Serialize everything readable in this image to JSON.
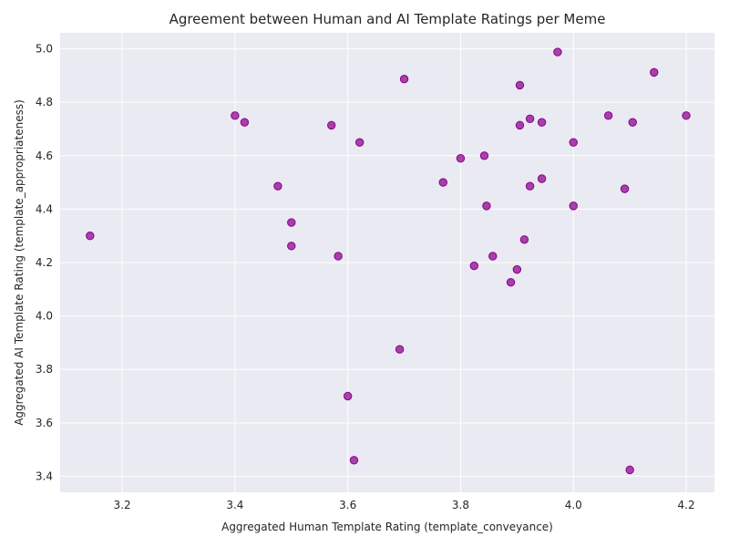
{
  "chart_data": {
    "type": "scatter",
    "title": "Agreement between Human and AI Template Ratings per Meme",
    "xlabel": "Aggregated Human Template Rating (template_conveyance)",
    "ylabel": "Aggregated AI Template Rating (template_appropriateness)",
    "xlim": [
      3.09,
      4.25
    ],
    "ylim": [
      3.34,
      5.06
    ],
    "xticks": [
      3.2,
      3.4,
      3.6,
      3.8,
      4.0,
      4.2
    ],
    "yticks": [
      3.4,
      3.6,
      3.8,
      4.0,
      4.2,
      4.4,
      4.6,
      4.8,
      5.0
    ],
    "grid": true,
    "background": "#eaeaf2",
    "point_color": "#8b008b",
    "points": [
      {
        "x": 3.143,
        "y": 4.3
      },
      {
        "x": 3.4,
        "y": 4.75
      },
      {
        "x": 3.417,
        "y": 4.725
      },
      {
        "x": 3.476,
        "y": 4.486
      },
      {
        "x": 3.5,
        "y": 4.35
      },
      {
        "x": 3.5,
        "y": 4.262
      },
      {
        "x": 3.571,
        "y": 4.714
      },
      {
        "x": 3.583,
        "y": 4.224
      },
      {
        "x": 3.6,
        "y": 3.7
      },
      {
        "x": 3.611,
        "y": 3.46
      },
      {
        "x": 3.621,
        "y": 4.65
      },
      {
        "x": 3.692,
        "y": 3.875
      },
      {
        "x": 3.7,
        "y": 4.887
      },
      {
        "x": 3.769,
        "y": 4.5
      },
      {
        "x": 3.8,
        "y": 4.59
      },
      {
        "x": 3.824,
        "y": 4.188
      },
      {
        "x": 3.842,
        "y": 4.6
      },
      {
        "x": 3.846,
        "y": 4.412
      },
      {
        "x": 3.857,
        "y": 4.224
      },
      {
        "x": 3.889,
        "y": 4.126
      },
      {
        "x": 3.9,
        "y": 4.174
      },
      {
        "x": 3.905,
        "y": 4.864
      },
      {
        "x": 3.905,
        "y": 4.714
      },
      {
        "x": 3.913,
        "y": 4.286
      },
      {
        "x": 3.923,
        "y": 4.738
      },
      {
        "x": 3.923,
        "y": 4.486
      },
      {
        "x": 3.944,
        "y": 4.725
      },
      {
        "x": 3.944,
        "y": 4.514
      },
      {
        "x": 3.972,
        "y": 4.988
      },
      {
        "x": 4.0,
        "y": 4.65
      },
      {
        "x": 4.0,
        "y": 4.412
      },
      {
        "x": 4.062,
        "y": 4.75
      },
      {
        "x": 4.091,
        "y": 4.476
      },
      {
        "x": 4.1,
        "y": 3.424
      },
      {
        "x": 4.105,
        "y": 4.725
      },
      {
        "x": 4.143,
        "y": 4.912
      },
      {
        "x": 4.2,
        "y": 4.75
      }
    ]
  }
}
